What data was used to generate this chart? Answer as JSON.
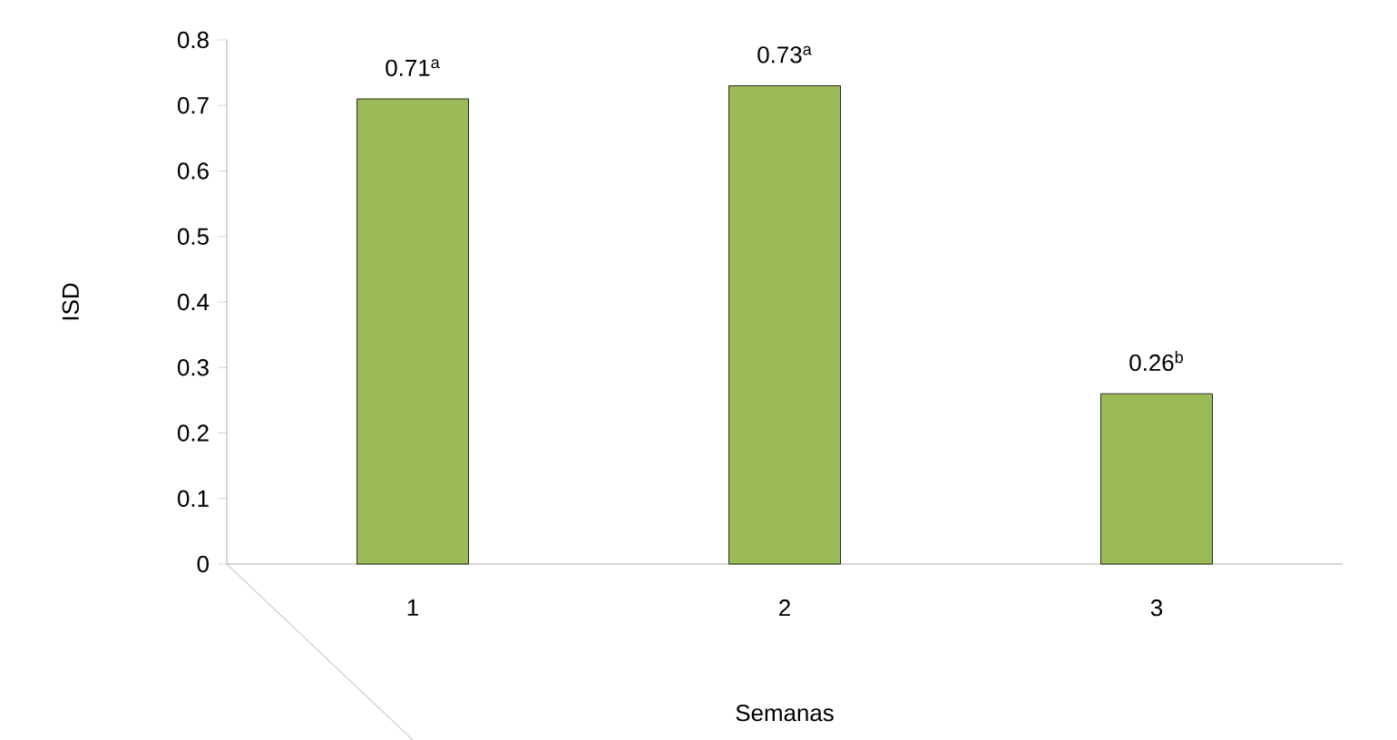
{
  "chart_data": {
    "type": "bar",
    "xlabel": "Semanas",
    "ylabel": "ISD",
    "categories": [
      "1",
      "2",
      "3"
    ],
    "values": [
      0.71,
      0.73,
      0.26
    ],
    "value_labels": [
      "0.71$^{a}$",
      "0.73$^{a}$",
      "0.26$^{b}$"
    ],
    "color": "#9bbb59",
    "ylim": [
      0,
      0.8
    ],
    "yticks": [
      0,
      0.1,
      0.2,
      0.3,
      0.4,
      0.5,
      0.6,
      0.7,
      0.8
    ]
  }
}
